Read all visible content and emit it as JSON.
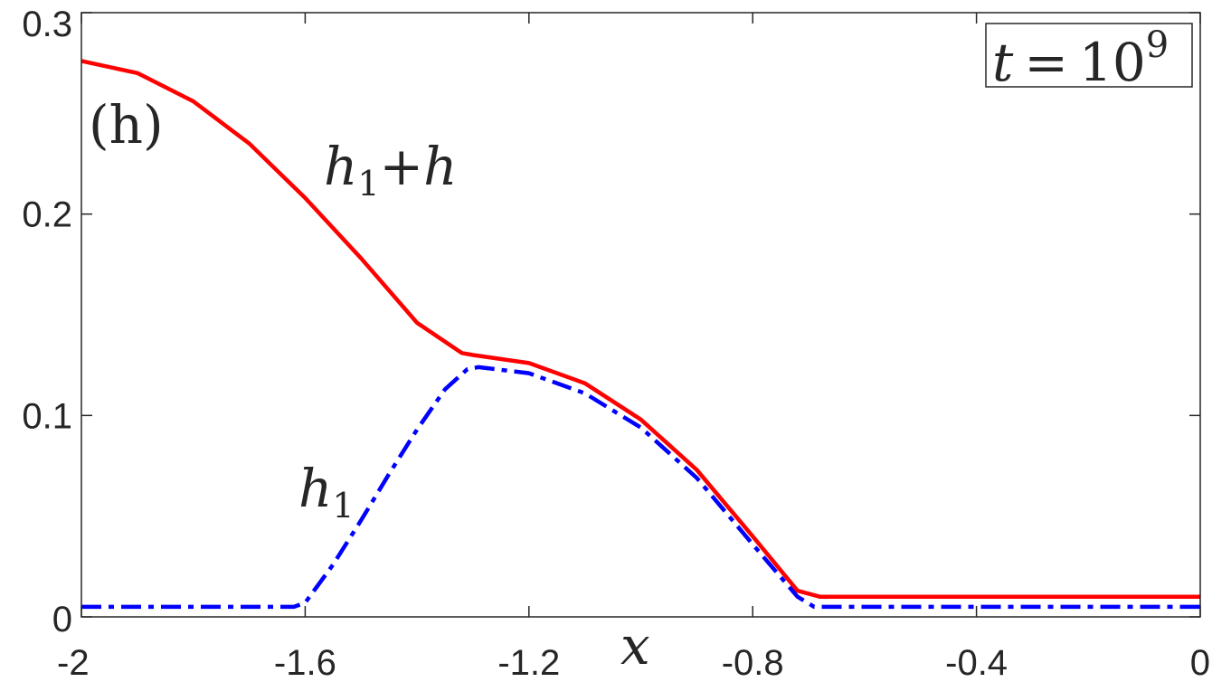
{
  "chart_data": {
    "type": "line",
    "xlabel": "x",
    "xlim": [
      -2,
      0
    ],
    "ylim": [
      0,
      0.3
    ],
    "xticks": [
      -2,
      -1.6,
      -1.2,
      -0.8,
      -0.4,
      0
    ],
    "xtick_labels": [
      "-2",
      "-1.6",
      "-1.2",
      "-0.8",
      "-0.4",
      "0"
    ],
    "yticks": [
      0,
      0.1,
      0.2,
      0.3
    ],
    "ytick_labels": [
      "0",
      "0.1",
      "0.2",
      "0.3"
    ],
    "grid": false,
    "panel_label": "(h)",
    "time_box": {
      "lhs": "t",
      "eq": "=",
      "base": "10",
      "exp": "9"
    },
    "series": [
      {
        "name": "h1+h",
        "label_main": "h",
        "label_sub": "1",
        "label_rest": "+h",
        "color": "#ff0000",
        "style": "solid",
        "x": [
          -2.0,
          -1.9,
          -1.8,
          -1.7,
          -1.6,
          -1.5,
          -1.4,
          -1.32,
          -1.3,
          -1.2,
          -1.1,
          -1.0,
          -0.9,
          -0.8,
          -0.72,
          -0.68,
          -0.5,
          -0.2,
          0.0
        ],
        "y": [
          0.276,
          0.27,
          0.256,
          0.235,
          0.208,
          0.178,
          0.146,
          0.131,
          0.13,
          0.126,
          0.116,
          0.098,
          0.073,
          0.04,
          0.013,
          0.01,
          0.01,
          0.01,
          0.01
        ]
      },
      {
        "name": "h1",
        "label_main": "h",
        "label_sub": "1",
        "label_rest": "",
        "color": "#0000ff",
        "style": "dashdot",
        "x": [
          -2.0,
          -1.8,
          -1.62,
          -1.6,
          -1.55,
          -1.5,
          -1.45,
          -1.4,
          -1.35,
          -1.31,
          -1.29,
          -1.2,
          -1.1,
          -1.0,
          -0.9,
          -0.8,
          -0.72,
          -0.69,
          -0.5,
          -0.2,
          0.0
        ],
        "y": [
          0.005,
          0.005,
          0.005,
          0.007,
          0.026,
          0.048,
          0.071,
          0.093,
          0.113,
          0.123,
          0.124,
          0.121,
          0.111,
          0.094,
          0.069,
          0.036,
          0.01,
          0.005,
          0.005,
          0.005,
          0.005
        ]
      }
    ]
  }
}
